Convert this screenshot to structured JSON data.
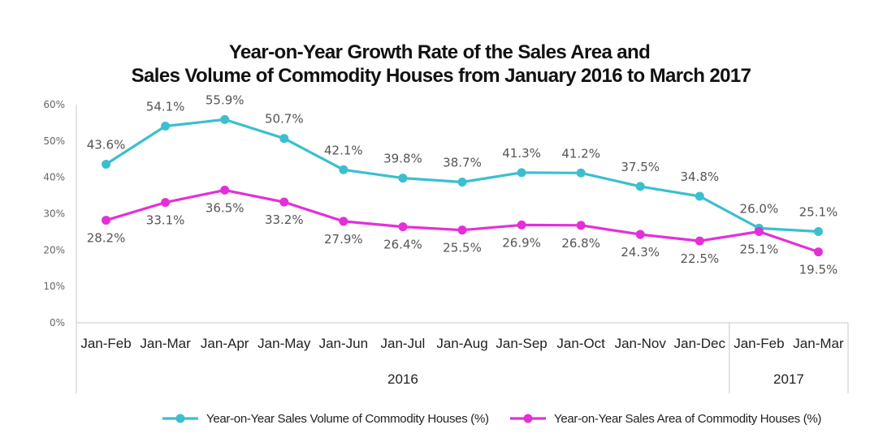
{
  "chart_data": {
    "type": "line",
    "title": [
      "Year-on-Year Growth Rate of the Sales Area and",
      "Sales Volume of Commodity Houses from January 2016 to March 2017"
    ],
    "categories": [
      "Jan-Feb",
      "Jan-Mar",
      "Jan-Apr",
      "Jan-May",
      "Jan-Jun",
      "Jan-Jul",
      "Jan-Aug",
      "Jan-Sep",
      "Jan-Oct",
      "Jan-Nov",
      "Jan-Dec",
      "Jan-Feb",
      "Jan-Mar"
    ],
    "year_groups": [
      {
        "label": "2016",
        "count": 11
      },
      {
        "label": "2017",
        "count": 2
      }
    ],
    "ylim": [
      0,
      60
    ],
    "yticks": [
      "0%",
      "10%",
      "20%",
      "30%",
      "40%",
      "50%",
      "60%"
    ],
    "series": [
      {
        "name": "Year-on-Year Sales Volume of Commodity Houses (%)",
        "color": "#3bbfcf",
        "values": [
          43.6,
          54.1,
          55.9,
          50.7,
          42.1,
          39.8,
          38.7,
          41.3,
          41.2,
          37.5,
          34.8,
          26.0,
          25.1
        ],
        "labels": [
          "43.6%",
          "54.1%",
          "55.9%",
          "50.7%",
          "42.1%",
          "39.8%",
          "38.7%",
          "41.3%",
          "41.2%",
          "37.5%",
          "34.8%",
          "26.0%",
          "25.1%"
        ],
        "label_position": "above"
      },
      {
        "name": "Year-on-Year Sales Area of Commodity Houses (%)",
        "color": "#e42fd9",
        "values": [
          28.2,
          33.1,
          36.5,
          33.2,
          27.9,
          26.4,
          25.5,
          26.9,
          26.8,
          24.3,
          22.5,
          25.1,
          19.5
        ],
        "labels": [
          "28.2%",
          "33.1%",
          "36.5%",
          "33.2%",
          "27.9%",
          "26.4%",
          "25.5%",
          "26.9%",
          "26.8%",
          "24.3%",
          "22.5%",
          "25.1%",
          "19.5%"
        ],
        "label_position": "below"
      }
    ],
    "legend_position": "bottom",
    "grid": false
  }
}
